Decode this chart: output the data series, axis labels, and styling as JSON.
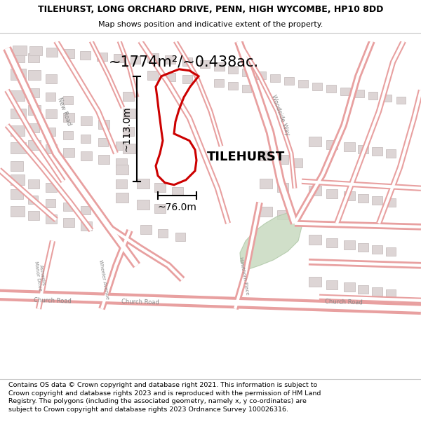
{
  "title_line1": "TILEHURST, LONG ORCHARD DRIVE, PENN, HIGH WYCOMBE, HP10 8DD",
  "title_line2": "Map shows position and indicative extent of the property.",
  "area_text": "~1774m²/~0.438ac.",
  "label_text": "TILEHURST",
  "dim_vertical": "~113.0m",
  "dim_horizontal": "~76.0m",
  "footer_text": "Contains OS data © Crown copyright and database right 2021. This information is subject to Crown copyright and database rights 2023 and is reproduced with the permission of HM Land Registry. The polygons (including the associated geometry, namely x, y co-ordinates) are subject to Crown copyright and database rights 2023 Ordnance Survey 100026316.",
  "map_bg": "#f9f4f4",
  "road_fill": "#f9f4f4",
  "road_stroke": "#e8a0a0",
  "building_fill": "#ddd5d5",
  "building_edge": "#c8c0c0",
  "green_fill": "#c8dac0",
  "green_edge": "#b0c8a8",
  "property_color": "#cc0000",
  "title_fontsize": 9.0,
  "subtitle_fontsize": 8.0,
  "footer_fontsize": 6.8,
  "area_fontsize": 15,
  "label_fontsize": 13,
  "dim_fontsize": 10,
  "road_label_fontsize": 6.0,
  "road_label_color": "#888888"
}
